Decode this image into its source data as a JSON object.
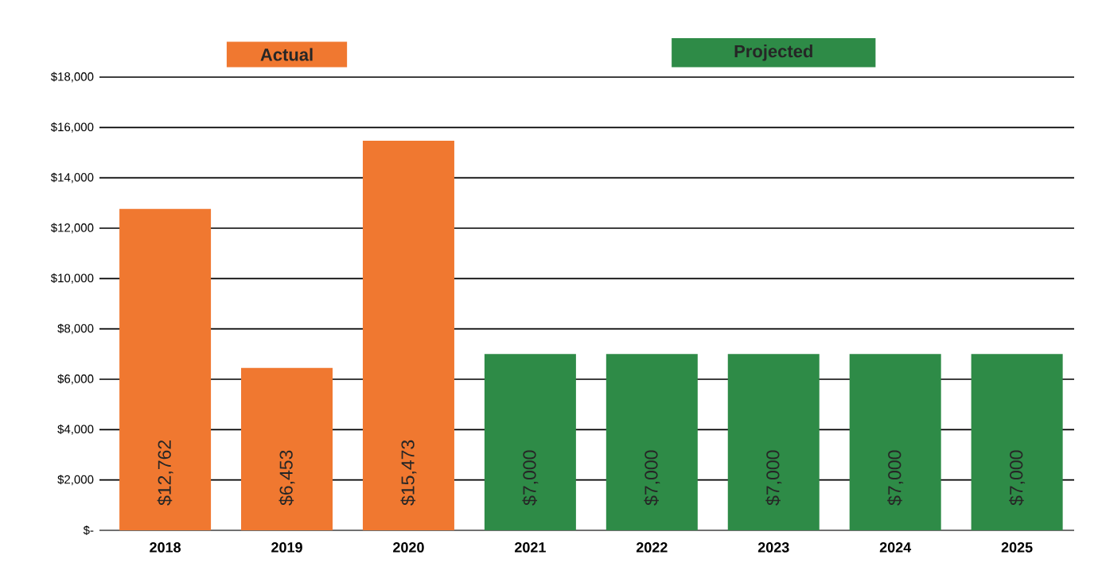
{
  "chart_data": {
    "type": "bar",
    "categories": [
      "2018",
      "2019",
      "2020",
      "2021",
      "2022",
      "2023",
      "2024",
      "2025"
    ],
    "series": [
      {
        "name": "Actual",
        "color": "#f07830",
        "values": [
          12762,
          6453,
          15473,
          null,
          null,
          null,
          null,
          null
        ],
        "value_labels": [
          "$12,762",
          "$6,453",
          "$15,473",
          null,
          null,
          null,
          null,
          null
        ]
      },
      {
        "name": "Projected",
        "color": "#2e8b47",
        "values": [
          null,
          null,
          null,
          7000,
          7000,
          7000,
          7000,
          7000
        ],
        "value_labels": [
          null,
          null,
          null,
          "$7,000",
          "$7,000",
          "$7,000",
          "$7,000",
          "$7,000"
        ]
      }
    ],
    "ylim": [
      0,
      18000
    ],
    "yticks": [
      {
        "value": 0,
        "label": "$-"
      },
      {
        "value": 2000,
        "label": "$2,000"
      },
      {
        "value": 4000,
        "label": "$4,000"
      },
      {
        "value": 6000,
        "label": "$6,000"
      },
      {
        "value": 8000,
        "label": "$8,000"
      },
      {
        "value": 10000,
        "label": "$10,000"
      },
      {
        "value": 12000,
        "label": "$12,000"
      },
      {
        "value": 14000,
        "label": "$14,000"
      },
      {
        "value": 16000,
        "label": "$16,000"
      },
      {
        "value": 18000,
        "label": "$18,000"
      }
    ],
    "grid": "y"
  }
}
